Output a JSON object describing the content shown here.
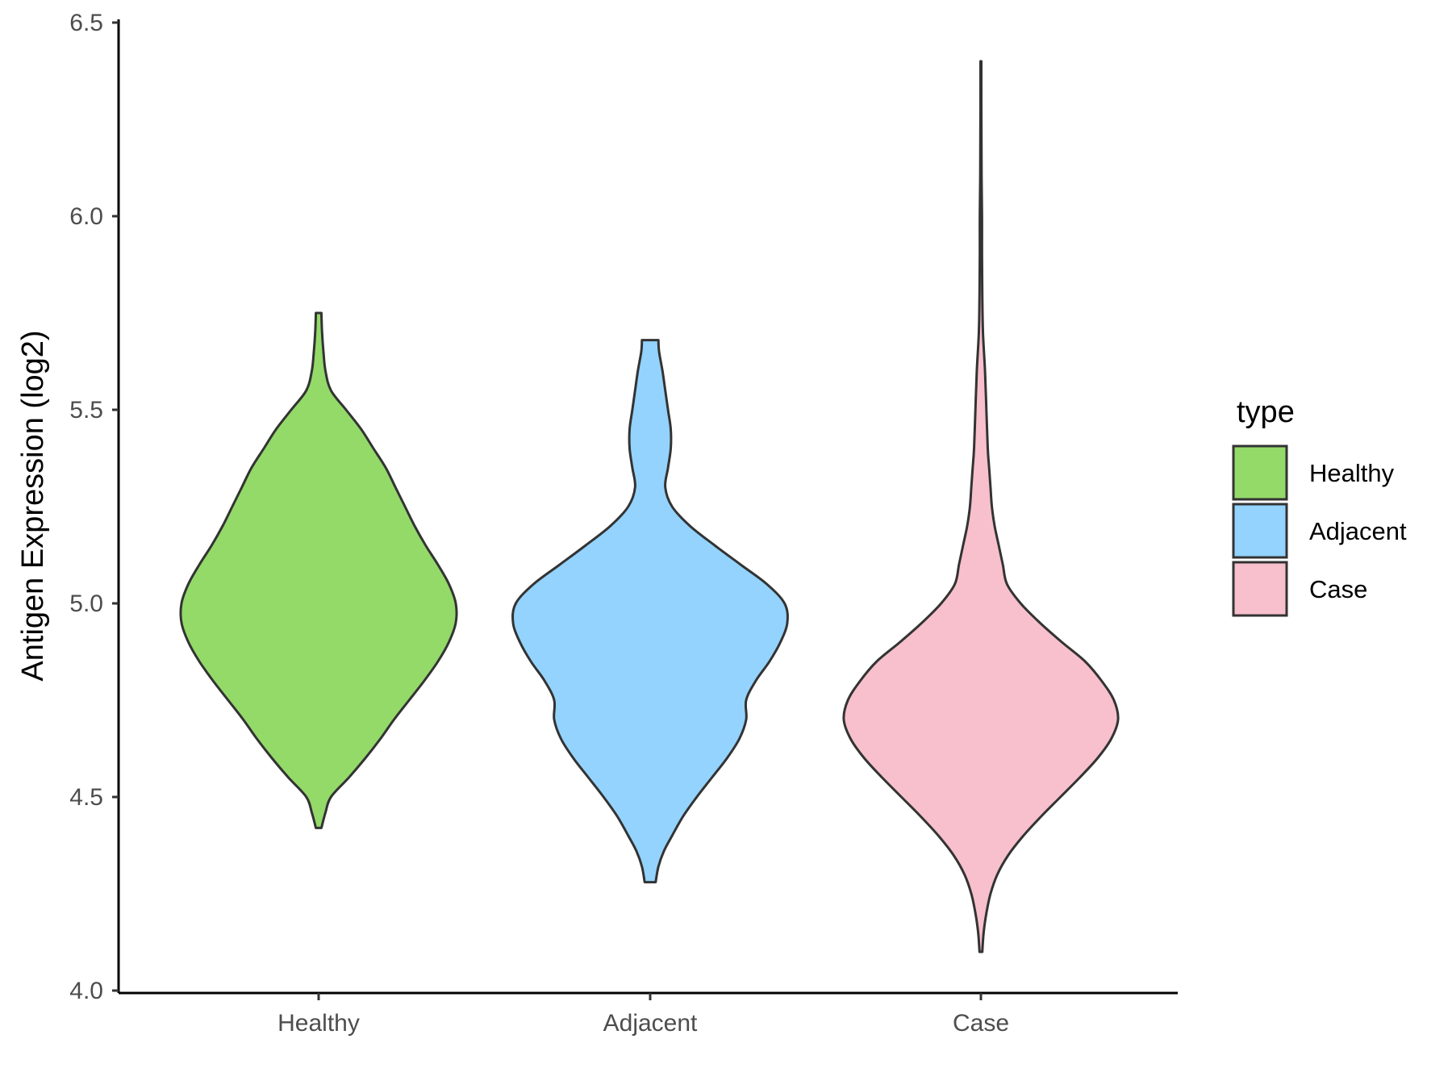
{
  "chart_data": {
    "type": "violin",
    "title": "",
    "xlabel": "",
    "ylabel": "Antigen Expression (log2)",
    "ylim": [
      4.0,
      6.5
    ],
    "yticks": [
      "4.0",
      "4.5",
      "5.0",
      "5.5",
      "6.0",
      "6.5"
    ],
    "categories": [
      "Healthy",
      "Adjacent",
      "Case"
    ],
    "grid": false,
    "legend": {
      "title": "type",
      "position": "right",
      "entries": [
        "Healthy",
        "Adjacent",
        "Case"
      ]
    },
    "colors": {
      "Healthy": "#93DA69",
      "Adjacent": "#93D3FE",
      "Case": "#F7C0CC",
      "outline": "#333333"
    },
    "series": [
      {
        "category": "Healthy",
        "min": 4.42,
        "max": 5.75,
        "density": [
          [
            4.42,
            0.02
          ],
          [
            4.46,
            0.05
          ],
          [
            4.5,
            0.09
          ],
          [
            4.55,
            0.22
          ],
          [
            4.6,
            0.34
          ],
          [
            4.65,
            0.45
          ],
          [
            4.7,
            0.55
          ],
          [
            4.75,
            0.66
          ],
          [
            4.8,
            0.77
          ],
          [
            4.85,
            0.87
          ],
          [
            4.9,
            0.95
          ],
          [
            4.95,
            1.0
          ],
          [
            5.0,
            1.0
          ],
          [
            5.05,
            0.95
          ],
          [
            5.1,
            0.87
          ],
          [
            5.15,
            0.78
          ],
          [
            5.2,
            0.7
          ],
          [
            5.25,
            0.63
          ],
          [
            5.3,
            0.56
          ],
          [
            5.35,
            0.49
          ],
          [
            5.4,
            0.4
          ],
          [
            5.45,
            0.31
          ],
          [
            5.5,
            0.2
          ],
          [
            5.55,
            0.09
          ],
          [
            5.6,
            0.05
          ],
          [
            5.65,
            0.035
          ],
          [
            5.7,
            0.025
          ],
          [
            5.75,
            0.02
          ]
        ]
      },
      {
        "category": "Adjacent",
        "min": 4.28,
        "max": 5.68,
        "density": [
          [
            4.28,
            0.04
          ],
          [
            4.32,
            0.06
          ],
          [
            4.36,
            0.1
          ],
          [
            4.4,
            0.16
          ],
          [
            4.45,
            0.24
          ],
          [
            4.5,
            0.34
          ],
          [
            4.55,
            0.45
          ],
          [
            4.6,
            0.56
          ],
          [
            4.65,
            0.65
          ],
          [
            4.7,
            0.7
          ],
          [
            4.75,
            0.7
          ],
          [
            4.8,
            0.77
          ],
          [
            4.85,
            0.87
          ],
          [
            4.9,
            0.95
          ],
          [
            4.95,
            1.0
          ],
          [
            5.0,
            0.98
          ],
          [
            5.05,
            0.85
          ],
          [
            5.1,
            0.66
          ],
          [
            5.15,
            0.47
          ],
          [
            5.2,
            0.29
          ],
          [
            5.25,
            0.16
          ],
          [
            5.3,
            0.11
          ],
          [
            5.35,
            0.13
          ],
          [
            5.4,
            0.15
          ],
          [
            5.45,
            0.15
          ],
          [
            5.5,
            0.13
          ],
          [
            5.55,
            0.11
          ],
          [
            5.6,
            0.09
          ],
          [
            5.65,
            0.065
          ],
          [
            5.68,
            0.06
          ]
        ]
      },
      {
        "category": "Case",
        "min": 4.1,
        "max": 6.4,
        "density": [
          [
            4.1,
            0.01
          ],
          [
            4.15,
            0.02
          ],
          [
            4.2,
            0.04
          ],
          [
            4.25,
            0.07
          ],
          [
            4.3,
            0.12
          ],
          [
            4.35,
            0.2
          ],
          [
            4.4,
            0.31
          ],
          [
            4.45,
            0.44
          ],
          [
            4.5,
            0.58
          ],
          [
            4.55,
            0.72
          ],
          [
            4.6,
            0.85
          ],
          [
            4.65,
            0.95
          ],
          [
            4.7,
            1.0
          ],
          [
            4.75,
            0.97
          ],
          [
            4.8,
            0.88
          ],
          [
            4.85,
            0.76
          ],
          [
            4.9,
            0.59
          ],
          [
            4.95,
            0.43
          ],
          [
            5.0,
            0.29
          ],
          [
            5.05,
            0.19
          ],
          [
            5.1,
            0.16
          ],
          [
            5.15,
            0.13
          ],
          [
            5.2,
            0.1
          ],
          [
            5.25,
            0.08
          ],
          [
            5.3,
            0.07
          ],
          [
            5.35,
            0.06
          ],
          [
            5.4,
            0.05
          ],
          [
            5.5,
            0.04
          ],
          [
            5.6,
            0.03
          ],
          [
            5.7,
            0.015
          ],
          [
            5.8,
            0.01
          ],
          [
            5.9,
            0.008
          ],
          [
            6.0,
            0.008
          ],
          [
            6.1,
            0.005
          ],
          [
            6.2,
            0.004
          ],
          [
            6.3,
            0.003
          ],
          [
            6.4,
            0.003
          ]
        ]
      }
    ]
  }
}
